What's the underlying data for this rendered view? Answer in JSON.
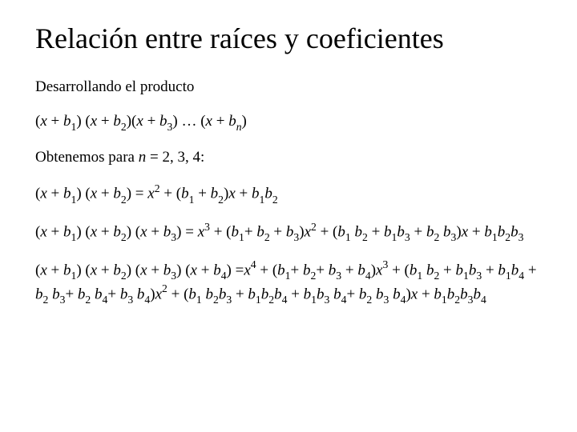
{
  "background_color": "#ffffff",
  "text_color": "#000000",
  "font_family": "Times New Roman",
  "title": {
    "text": "Relación entre raíces y coeficientes",
    "font_size_pt": 36
  },
  "body_font_size_pt": 19,
  "paragraphs": {
    "p1": {
      "html": "Desarrollando el producto"
    },
    "p2": {
      "html": "(<i>x</i> + <i>b</i><span class=\"sub\">1</span>) (<i>x</i> + <i>b</i><span class=\"sub\">2</span>)(<i>x</i> + <i>b</i><span class=\"sub\">3</span>) … (<i>x</i> + <i>b<span class=\"sub\">n</span></i>)"
    },
    "p3": {
      "html": "Obtenemos para <i>n</i> = 2, 3, 4:"
    },
    "p4": {
      "html": "(<i>x</i> + <i>b</i><span class=\"sub\">1</span>) (<i>x</i> + <i>b</i><span class=\"sub\">2</span>) = <i>x</i><span class=\"sup\">2</span> + (<i>b</i><span class=\"sub\">1</span> + <i>b</i><span class=\"sub\">2</span>)<i>x</i> + <i>b</i><span class=\"sub\">1</span><i>b</i><span class=\"sub\">2</span>"
    },
    "p5": {
      "html": "(<i>x</i> + <i>b</i><span class=\"sub\">1</span>) (<i>x</i> + <i>b</i><span class=\"sub\">2</span>) (<i>x</i> + <i>b</i><span class=\"sub\">3</span>) = <i>x</i><span class=\"sup\">3</span> + (<i>b</i><span class=\"sub\">1</span>+ <i>b</i><span class=\"sub\">2</span> + <i>b</i><span class=\"sub\">3</span>)<i>x</i><span class=\"sup\">2</span> + (<i>b</i><span class=\"sub\">1</span> <i>b</i><span class=\"sub\">2</span> + <i>b</i><span class=\"sub\">1</span><i>b</i><span class=\"sub\">3</span> + <i>b</i><span class=\"sub\">2</span> <i>b</i><span class=\"sub\">3</span>)<i>x</i> + <i>b</i><span class=\"sub\">1</span><i>b</i><span class=\"sub\">2</span><i>b</i><span class=\"sub\">3</span>"
    },
    "p6": {
      "html": "(<i>x</i> + <i>b</i><span class=\"sub\">1</span>) (<i>x</i> + <i>b</i><span class=\"sub\">2</span>) (<i>x</i> + <i>b</i><span class=\"sub\">3</span>) (<i>x</i> + <i>b</i><span class=\"sub\">4</span>) =<i>x</i><span class=\"sup\">4</span> + (<i>b</i><span class=\"sub\">1</span>+ <i>b</i><span class=\"sub\">2</span>+ <i>b</i><span class=\"sub\">3</span> + <i>b</i><span class=\"sub\">4</span>)<i>x</i><span class=\"sup\">3</span> + (<i>b</i><span class=\"sub\">1</span> <i>b</i><span class=\"sub\">2</span> + <i>b</i><span class=\"sub\">1</span><i>b</i><span class=\"sub\">3</span> + <i>b</i><span class=\"sub\">1</span><i>b</i><span class=\"sub\">4</span> + <i>b</i><span class=\"sub\">2</span> <i>b</i><span class=\"sub\">3</span>+ <i>b</i><span class=\"sub\">2</span> <i>b</i><span class=\"sub\">4</span>+ <i>b</i><span class=\"sub\">3</span> <i>b</i><span class=\"sub\">4</span>)<i>x</i><span class=\"sup\">2</span> + (<i>b</i><span class=\"sub\">1</span> <i>b</i><span class=\"sub\">2</span><i>b</i><span class=\"sub\">3</span> + <i>b</i><span class=\"sub\">1</span><i>b</i><span class=\"sub\">2</span><i>b</i><span class=\"sub\">4</span> + <i>b</i><span class=\"sub\">1</span><i>b</i><span class=\"sub\">3</span> <i>b</i><span class=\"sub\">4</span>+ <i>b</i><span class=\"sub\">2</span> <i>b</i><span class=\"sub\">3</span> <i>b</i><span class=\"sub\">4</span>)<i>x</i> + <i>b</i><span class=\"sub\">1</span><i>b</i><span class=\"sub\">2</span><i>b</i><span class=\"sub\">3</span><i>b</i><span class=\"sub\">4</span>"
    }
  }
}
